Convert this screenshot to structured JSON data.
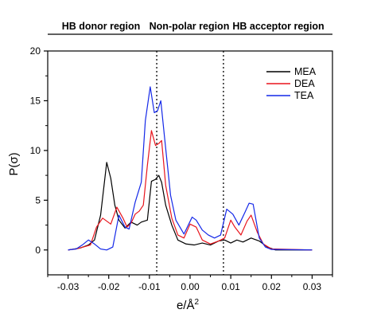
{
  "chart_data": {
    "type": "line",
    "xlabel": "e/Å",
    "xlabel_sup": "2",
    "ylabel": "P(σ)",
    "xlim": [
      -0.035,
      0.035
    ],
    "ylim": [
      -2.5,
      20
    ],
    "xticks": [
      -0.03,
      -0.02,
      -0.01,
      0.0,
      0.01,
      0.02,
      0.03
    ],
    "xtick_labels": [
      "-0.03",
      "-0.02",
      "-0.01",
      "0.00",
      "0.01",
      "0.02",
      "0.03"
    ],
    "yticks": [
      0,
      5,
      10,
      15,
      20
    ],
    "ytick_labels": [
      "0",
      "5",
      "10",
      "15",
      "20"
    ],
    "grid": false,
    "legend_position": "top-right",
    "regions": [
      {
        "label": "HB donor region"
      },
      {
        "label": "Non-polar region"
      },
      {
        "label": "HB acceptor region"
      }
    ],
    "dividers": [
      -0.0082,
      0.0082
    ],
    "series": [
      {
        "name": "MEA",
        "color": "#000000",
        "points": [
          [
            -0.03,
            0
          ],
          [
            -0.027,
            0.2
          ],
          [
            -0.025,
            0.5
          ],
          [
            -0.0235,
            1.0
          ],
          [
            -0.022,
            3.5
          ],
          [
            -0.0205,
            8.8
          ],
          [
            -0.0195,
            7.2
          ],
          [
            -0.0185,
            4.5
          ],
          [
            -0.0175,
            3.0
          ],
          [
            -0.016,
            2.2
          ],
          [
            -0.0145,
            2.8
          ],
          [
            -0.013,
            2.5
          ],
          [
            -0.012,
            2.8
          ],
          [
            -0.0105,
            3.0
          ],
          [
            -0.0095,
            6.9
          ],
          [
            -0.0085,
            7.1
          ],
          [
            -0.0077,
            7.5
          ],
          [
            -0.007,
            6.8
          ],
          [
            -0.006,
            4.5
          ],
          [
            -0.0045,
            2.5
          ],
          [
            -0.003,
            1.0
          ],
          [
            -0.001,
            0.6
          ],
          [
            0.001,
            0.5
          ],
          [
            0.003,
            0.7
          ],
          [
            0.005,
            0.5
          ],
          [
            0.007,
            0.9
          ],
          [
            0.0085,
            1.0
          ],
          [
            0.01,
            0.7
          ],
          [
            0.0115,
            1.0
          ],
          [
            0.013,
            0.8
          ],
          [
            0.015,
            1.2
          ],
          [
            0.017,
            0.9
          ],
          [
            0.019,
            0.3
          ],
          [
            0.021,
            0.0
          ],
          [
            0.03,
            0
          ]
        ]
      },
      {
        "name": "DEA",
        "color": "#e8141c",
        "points": [
          [
            -0.03,
            0
          ],
          [
            -0.028,
            0.1
          ],
          [
            -0.0245,
            0.5
          ],
          [
            -0.023,
            2.3
          ],
          [
            -0.0215,
            3.2
          ],
          [
            -0.0195,
            2.6
          ],
          [
            -0.018,
            4.3
          ],
          [
            -0.0165,
            3.2
          ],
          [
            -0.0155,
            2.3
          ],
          [
            -0.0145,
            2.7
          ],
          [
            -0.0135,
            3.6
          ],
          [
            -0.0125,
            3.9
          ],
          [
            -0.0115,
            4.5
          ],
          [
            -0.0105,
            8.5
          ],
          [
            -0.0095,
            12.0
          ],
          [
            -0.0085,
            10.5
          ],
          [
            -0.0077,
            10.7
          ],
          [
            -0.007,
            11.0
          ],
          [
            -0.006,
            6.5
          ],
          [
            -0.0045,
            3.2
          ],
          [
            -0.003,
            1.5
          ],
          [
            -0.0015,
            1.2
          ],
          [
            0.0,
            2.6
          ],
          [
            0.0015,
            2.3
          ],
          [
            0.003,
            1.0
          ],
          [
            0.005,
            0.6
          ],
          [
            0.007,
            0.9
          ],
          [
            0.0085,
            1.2
          ],
          [
            0.01,
            3.0
          ],
          [
            0.011,
            2.3
          ],
          [
            0.0125,
            1.5
          ],
          [
            0.014,
            2.9
          ],
          [
            0.015,
            3.5
          ],
          [
            0.0165,
            1.8
          ],
          [
            0.018,
            0.6
          ],
          [
            0.02,
            0.1
          ],
          [
            0.03,
            0
          ]
        ]
      },
      {
        "name": "TEA",
        "color": "#1428e8",
        "points": [
          [
            -0.03,
            0
          ],
          [
            -0.028,
            0.1
          ],
          [
            -0.0265,
            0.5
          ],
          [
            -0.025,
            1.0
          ],
          [
            -0.0235,
            0.6
          ],
          [
            -0.022,
            0.1
          ],
          [
            -0.0205,
            0.0
          ],
          [
            -0.019,
            0.3
          ],
          [
            -0.0175,
            3.5
          ],
          [
            -0.016,
            2.3
          ],
          [
            -0.015,
            2.1
          ],
          [
            -0.0135,
            4.8
          ],
          [
            -0.012,
            6.8
          ],
          [
            -0.011,
            13.0
          ],
          [
            -0.0098,
            16.4
          ],
          [
            -0.0088,
            13.8
          ],
          [
            -0.008,
            14.0
          ],
          [
            -0.0072,
            15.0
          ],
          [
            -0.0062,
            11.0
          ],
          [
            -0.0048,
            5.5
          ],
          [
            -0.0035,
            3.0
          ],
          [
            -0.0015,
            1.6
          ],
          [
            0.0005,
            3.3
          ],
          [
            0.0015,
            3.0
          ],
          [
            0.003,
            2.0
          ],
          [
            0.0045,
            1.5
          ],
          [
            0.006,
            1.2
          ],
          [
            0.0075,
            1.5
          ],
          [
            0.009,
            4.1
          ],
          [
            0.0105,
            3.6
          ],
          [
            0.012,
            2.5
          ],
          [
            0.0135,
            3.8
          ],
          [
            0.0145,
            4.7
          ],
          [
            0.0155,
            4.6
          ],
          [
            0.017,
            1.2
          ],
          [
            0.0185,
            0.3
          ],
          [
            0.02,
            0.05
          ],
          [
            0.03,
            0
          ]
        ]
      }
    ]
  }
}
